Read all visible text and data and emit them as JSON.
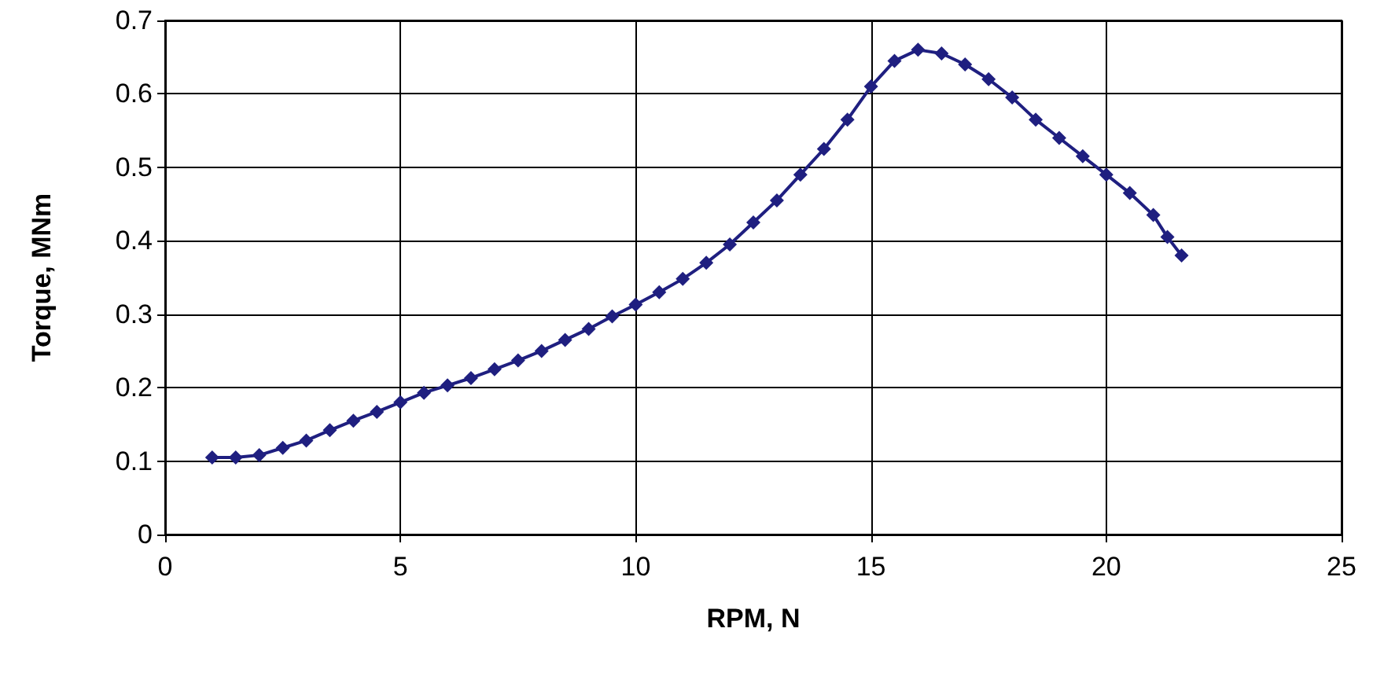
{
  "chart_data": {
    "type": "line",
    "xlabel": "RPM, N",
    "ylabel": "Torque, MNm",
    "x": [
      1,
      1.5,
      2,
      2.5,
      3,
      3.5,
      4,
      4.5,
      5,
      5.5,
      6,
      6.5,
      7,
      7.5,
      8,
      8.5,
      9,
      9.5,
      10,
      10.5,
      11,
      11.5,
      12,
      12.5,
      13,
      13.5,
      14,
      14.5,
      15,
      15.5,
      16,
      16.5,
      17,
      17.5,
      18,
      18.5,
      19,
      19.5,
      20,
      20.5,
      21,
      21.3,
      21.6
    ],
    "series": [
      {
        "color": "#1f1f80",
        "values": [
          0.105,
          0.105,
          0.108,
          0.118,
          0.128,
          0.142,
          0.155,
          0.167,
          0.18,
          0.193,
          0.203,
          0.213,
          0.225,
          0.237,
          0.25,
          0.265,
          0.28,
          0.297,
          0.313,
          0.33,
          0.348,
          0.37,
          0.395,
          0.425,
          0.455,
          0.49,
          0.525,
          0.565,
          0.61,
          0.645,
          0.66,
          0.655,
          0.64,
          0.62,
          0.595,
          0.565,
          0.54,
          0.515,
          0.49,
          0.465,
          0.435,
          0.405,
          0.38
        ]
      }
    ],
    "xlim": [
      0,
      25
    ],
    "xticks": [
      0,
      5,
      10,
      15,
      20,
      25
    ],
    "ylim": [
      0,
      0.7
    ],
    "yticks": [
      0,
      0.1,
      0.2,
      0.3,
      0.4,
      0.5,
      0.6,
      0.7
    ],
    "grid": true,
    "marker": "diamond",
    "line_style": "solid"
  }
}
